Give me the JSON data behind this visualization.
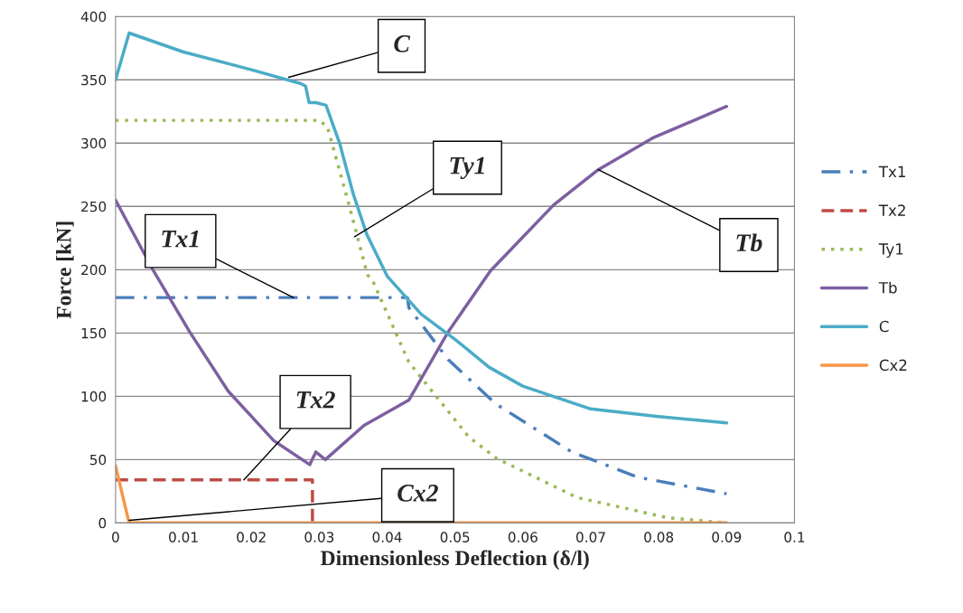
{
  "chart_data": {
    "type": "line",
    "xlabel": "Dimensionless Deflection (δ/l)",
    "ylabel": "Force [kN]",
    "xlim": [
      0,
      0.1
    ],
    "xticks": [
      0,
      0.01,
      0.02,
      0.03,
      0.04,
      0.05,
      0.06,
      0.07,
      0.08,
      0.09,
      0.1
    ],
    "ylim": [
      0,
      400
    ],
    "yticks": [
      0,
      50,
      100,
      150,
      200,
      250,
      300,
      350,
      400
    ],
    "grid": "y",
    "legend": "right",
    "marker": "none",
    "series": [
      {
        "name": "Tx1",
        "color": "#4a7ebb",
        "line_style": "dashdot",
        "x": [
          0,
          0.043,
          0.0432,
          0.049,
          0.056,
          0.0672,
          0.077,
          0.09
        ],
        "values": [
          178,
          178,
          170,
          129,
          94,
          56,
          36,
          23
        ]
      },
      {
        "name": "Tx2",
        "color": "#be4b48",
        "line_style": "dashed",
        "x": [
          0,
          0.029,
          0.029
        ],
        "values": [
          34,
          34,
          0
        ]
      },
      {
        "name": "Ty1",
        "color": "#98b954",
        "line_style": "dotted",
        "x": [
          0,
          0.03,
          0.0312,
          0.0344,
          0.0371,
          0.0379,
          0.0432,
          0.052,
          0.0561,
          0.068,
          0.0814,
          0.09
        ],
        "values": [
          318,
          318,
          313,
          251,
          196,
          191,
          127,
          68,
          51,
          20,
          4,
          0
        ]
      },
      {
        "name": "Tb",
        "color": "#7d60a0",
        "line_style": "solid",
        "x": [
          0,
          0.0056,
          0.0109,
          0.0166,
          0.0233,
          0.0286,
          0.0295,
          0.0309,
          0.0366,
          0.0432,
          0.049,
          0.0552,
          0.0645,
          0.0711,
          0.0791,
          0.09
        ],
        "values": [
          255,
          199,
          151,
          104,
          65,
          46,
          56,
          50,
          77,
          97,
          151,
          199,
          251,
          279,
          304,
          329
        ]
      },
      {
        "name": "C",
        "color": "#4bacc6",
        "line_style": "solid",
        "x": [
          0,
          0.002,
          0.01,
          0.02,
          0.0273,
          0.028,
          0.0285,
          0.0295,
          0.031,
          0.033,
          0.035,
          0.037,
          0.04,
          0.045,
          0.05,
          0.055,
          0.06,
          0.07,
          0.08,
          0.09
        ],
        "values": [
          350,
          387,
          372,
          358,
          347,
          345,
          332,
          332,
          330,
          300,
          260,
          228,
          195,
          165,
          145,
          123,
          108,
          90,
          84,
          79
        ]
      },
      {
        "name": "Cx2",
        "color": "#f79646",
        "line_style": "solid",
        "x": [
          0,
          0.002,
          0.09
        ],
        "values": [
          45,
          0,
          0
        ]
      }
    ],
    "annotations": [
      {
        "text": "C",
        "x": 0.0255,
        "y": 352
      },
      {
        "text": "Ty1",
        "x": 0.0352,
        "y": 226
      },
      {
        "text": "Tx1",
        "x": 0.0262,
        "y": 178
      },
      {
        "text": "Tb",
        "x": 0.0711,
        "y": 279
      },
      {
        "text": "Tx2",
        "x": 0.0189,
        "y": 34
      },
      {
        "text": "Cx2",
        "x": 0.002,
        "y": 2
      }
    ]
  }
}
